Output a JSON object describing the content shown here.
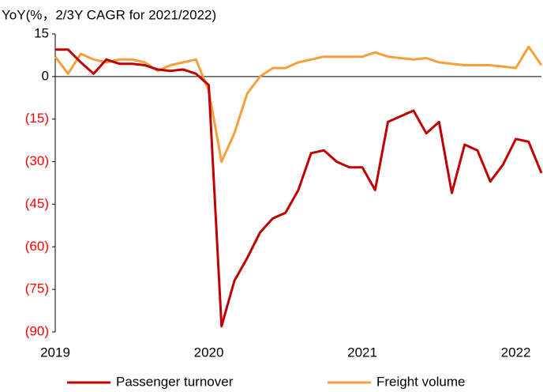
{
  "chart_data": {
    "type": "line",
    "title": "YoY(%，2/3Y CAGR for 2021/2022)",
    "categories": [
      "2019",
      null,
      null,
      null,
      null,
      null,
      null,
      null,
      null,
      null,
      null,
      null,
      "2020",
      null,
      null,
      null,
      null,
      null,
      null,
      null,
      null,
      null,
      null,
      null,
      "2021",
      null,
      null,
      null,
      null,
      null,
      null,
      null,
      null,
      null,
      null,
      null,
      "2022",
      null,
      null
    ],
    "series": [
      {
        "name": "Passenger turnover",
        "color": "#c00000",
        "values": [
          9.5,
          9.5,
          5,
          1,
          6,
          4.5,
          4.5,
          4,
          2.5,
          2,
          2.5,
          1,
          -3,
          -88,
          -72,
          -64,
          -55,
          -50,
          -48,
          -40,
          -27,
          -26,
          -30,
          -32,
          -32,
          -40,
          -16,
          -14,
          -12,
          -20,
          -16,
          -41,
          -24,
          -26,
          -37,
          -31,
          -22,
          -23,
          -34
        ]
      },
      {
        "name": "Freight volume",
        "color": "#f7a03a",
        "values": [
          7,
          1,
          8,
          6,
          5,
          6,
          6,
          5,
          2,
          4,
          5,
          6,
          -5,
          -30,
          -20,
          -6,
          0,
          3,
          3,
          5,
          6,
          7,
          7,
          7,
          7,
          8.5,
          7,
          6.5,
          6,
          6.5,
          5,
          4.5,
          4,
          4,
          4,
          3.5,
          3,
          10.5,
          4
        ]
      }
    ],
    "ylim": [
      -90,
      15
    ],
    "yticks": [
      15,
      0,
      {
        "value": -15,
        "label": "(15)"
      },
      {
        "value": -30,
        "label": "(30)"
      },
      {
        "value": -45,
        "label": "(45)"
      },
      {
        "value": -60,
        "label": "(60)"
      },
      {
        "value": -75,
        "label": "(75)"
      },
      {
        "value": -90,
        "label": "(90)"
      }
    ],
    "legend": "bottom"
  }
}
